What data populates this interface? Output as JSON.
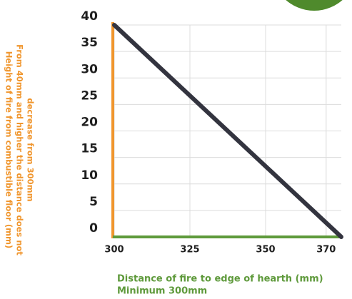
{
  "chart_data": {
    "type": "line",
    "x_label_lines": [
      "Distance of fire to edge of hearth (mm)",
      "Minimum 300mm"
    ],
    "y_label_lines": [
      "Height of fire from combustible floor (mm)",
      "From 40mm and higher the distance does not",
      "decrease from 300mm"
    ],
    "x": [
      300,
      375
    ],
    "values": [
      40,
      0
    ],
    "color": "#33343f",
    "xlim": [
      300,
      375
    ],
    "xticks": [
      300,
      325,
      350,
      370
    ],
    "ylim": [
      0,
      40
    ],
    "yticks": [
      0,
      5,
      10,
      15,
      20,
      25,
      30,
      35,
      40
    ],
    "grid": true
  }
}
